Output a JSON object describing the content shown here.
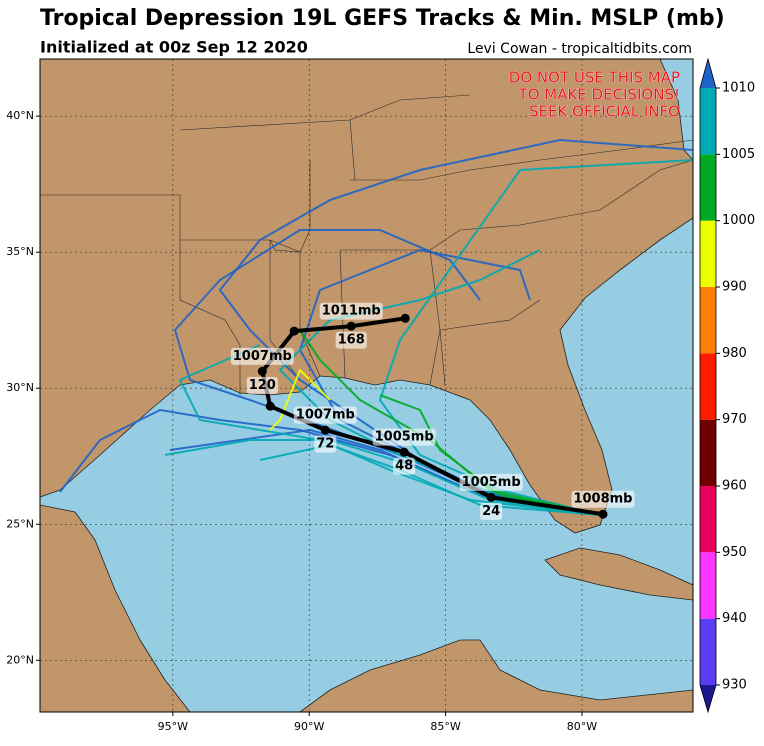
{
  "header": {
    "title": "Tropical Depression 19L GEFS Tracks & Min. MSLP (mb)",
    "subtitle": "Initialized at 00z Sep 12 2020",
    "credit": "Levi Cowan - tropicaltidbits.com"
  },
  "map": {
    "warning": [
      "DO NOT USE THIS MAP",
      "TO MAKE DECISIONS!",
      "SEEK OFFICIAL INFO"
    ],
    "xlim": [
      -99.87,
      -75.93
    ],
    "ylim": [
      18.1,
      42.1
    ],
    "xticks": [
      {
        "value": -95,
        "label": "95°W"
      },
      {
        "value": -90,
        "label": "90°W"
      },
      {
        "value": -85,
        "label": "85°W"
      },
      {
        "value": -80,
        "label": "80°W"
      }
    ],
    "yticks": [
      {
        "value": 20,
        "label": "20°N"
      },
      {
        "value": 25,
        "label": "25°N"
      },
      {
        "value": 30,
        "label": "30°N"
      },
      {
        "value": 35,
        "label": "35°N"
      },
      {
        "value": 40,
        "label": "40°N"
      }
    ],
    "mean_track": {
      "color": "#000000",
      "lon": [
        -79.23,
        -83.33,
        -86.52,
        -89.41,
        -91.43,
        -91.72,
        -90.55,
        -88.46,
        -86.48
      ],
      "lat": [
        25.37,
        25.99,
        27.65,
        28.46,
        29.34,
        30.62,
        32.1,
        32.28,
        32.57
      ],
      "pressure_labels": [
        "1008mb",
        "1005mb",
        "1005mb",
        "1007mb",
        null,
        "1007mb",
        null,
        "1011mb",
        null
      ],
      "hour_labels": [
        null,
        "24",
        "48",
        "72",
        null,
        "120",
        null,
        "168",
        null
      ]
    },
    "colorbar": {
      "levels": [
        930,
        940,
        950,
        960,
        970,
        980,
        990,
        1000,
        1005,
        1010
      ],
      "colors": [
        "#5b3cf5",
        "#ff33ff",
        "#e8005a",
        "#700000",
        "#ff1a00",
        "#ff7f00",
        "#eeff00",
        "#00aa22",
        "#00aab4"
      ],
      "extend_colors": [
        "#1a1a8c",
        "#1e64c8"
      ]
    }
  }
}
